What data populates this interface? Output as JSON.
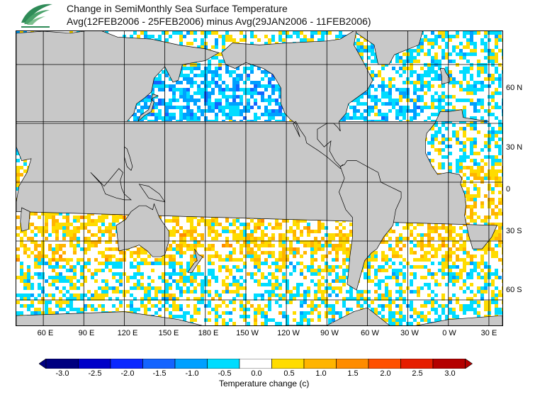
{
  "title": {
    "line1": "Change in SemiMonthly Sea Surface Temperature",
    "line2": "Avg(12FEB2006 - 25FEB2006) minus Avg(29JAN2006 - 11FEB2006)"
  },
  "map": {
    "lat_labels": [
      "60 N",
      "30 N",
      "0",
      "30 S",
      "60 S"
    ],
    "lon_labels": [
      "60 E",
      "90 E",
      "120 E",
      "150 E",
      "180 E",
      "150 W",
      "120 W",
      "90 W",
      "60 W",
      "30 W",
      "0 W",
      "30 E"
    ],
    "land_color": "#c8c8c8",
    "ocean_color": "#ffffff"
  },
  "legend": {
    "ticks": [
      "-3.0",
      "-2.5",
      "-2.0",
      "-1.5",
      "-1.0",
      "-0.5",
      "0.0",
      "0.5",
      "1.0",
      "1.5",
      "2.0",
      "2.5",
      "3.0"
    ],
    "colors": [
      "#000080",
      "#0000c8",
      "#0a28ff",
      "#1464ff",
      "#00a0ff",
      "#00dcff",
      "#ffffff",
      "#ffdc00",
      "#ffb400",
      "#ff8c00",
      "#ff5000",
      "#e61e00",
      "#b40000"
    ],
    "label": "Temperature change  (c)"
  }
}
